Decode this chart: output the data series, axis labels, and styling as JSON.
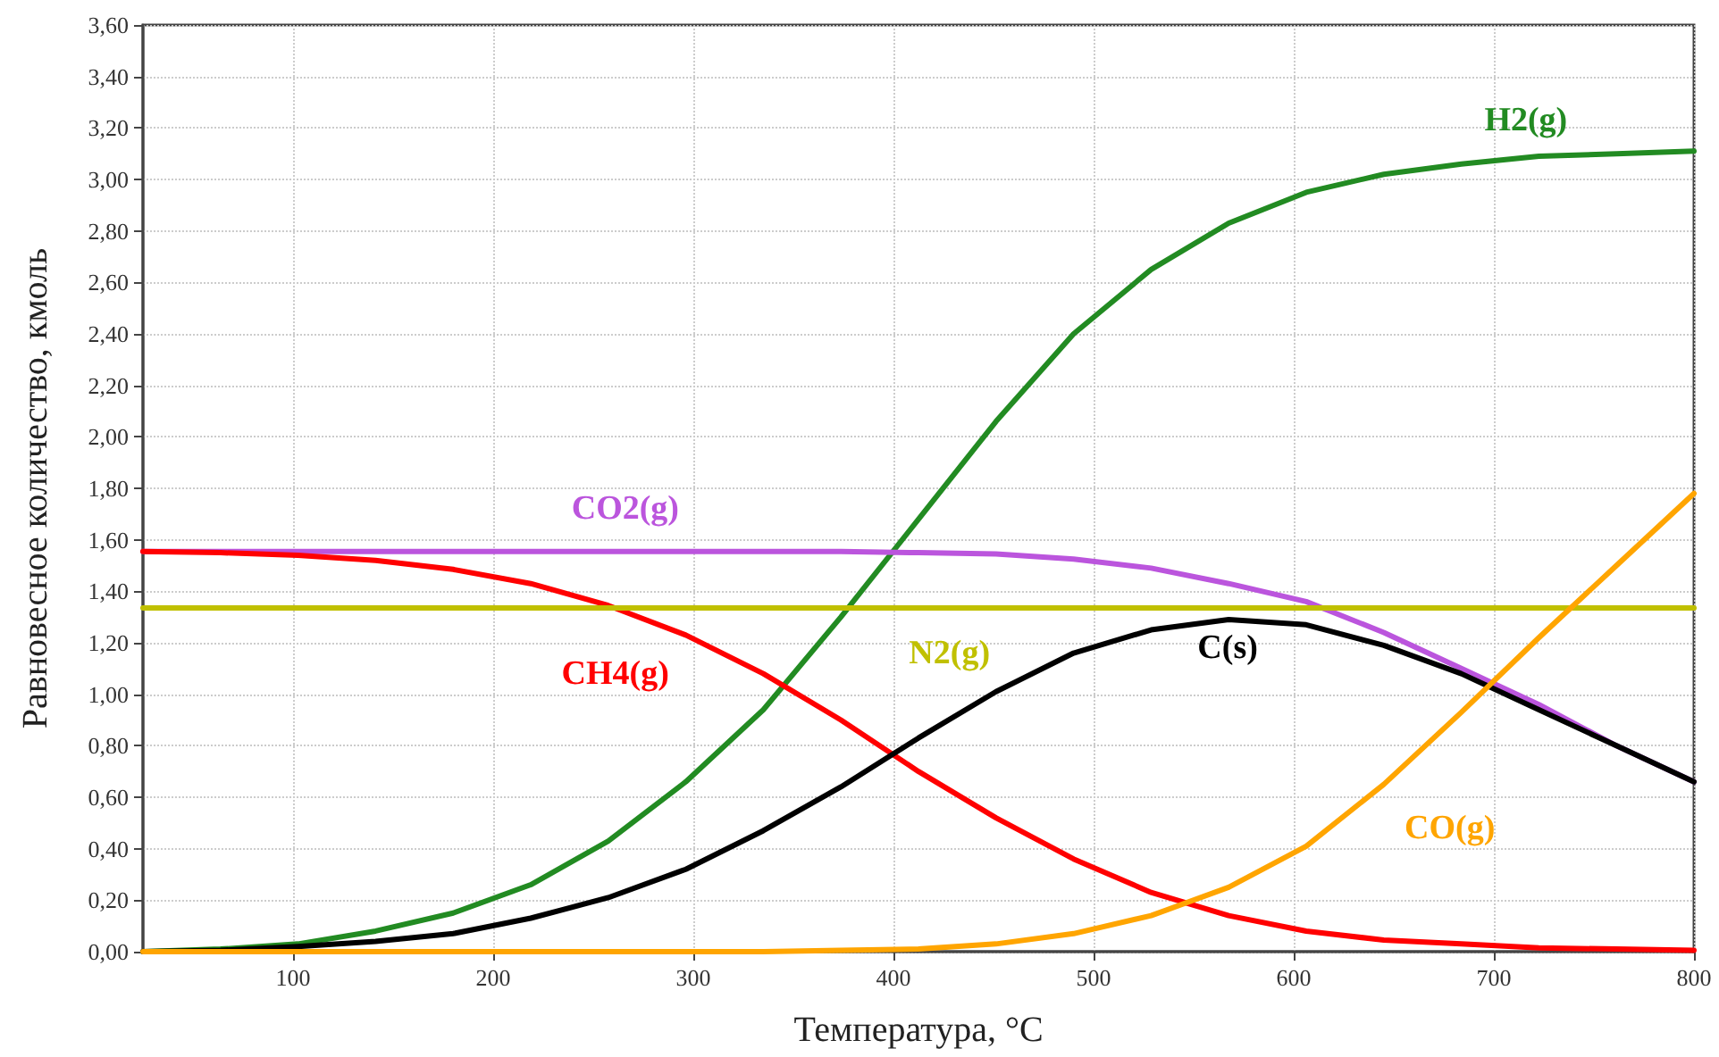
{
  "chart_data": {
    "type": "line",
    "xlabel": "Температура, °C",
    "ylabel": "Равновесное количество, кмоль",
    "x": [
      25,
      63.75,
      102.5,
      141.25,
      180,
      218.75,
      257.5,
      296.25,
      335,
      373.75,
      412.5,
      451.25,
      490,
      528.75,
      567.5,
      606.25,
      645,
      683.75,
      722.5,
      761.25,
      800
    ],
    "series": [
      {
        "name": "H2(g)",
        "color": "#228b22",
        "values": [
          0,
          0.01,
          0.03,
          0.08,
          0.15,
          0.26,
          0.43,
          0.66,
          0.94,
          1.3,
          1.68,
          2.06,
          2.4,
          2.65,
          2.83,
          2.95,
          3.02,
          3.06,
          3.09,
          3.1,
          3.11
        ]
      },
      {
        "name": "CO2(g)",
        "color": "#bb55dd",
        "values": [
          1.555,
          1.555,
          1.555,
          1.555,
          1.555,
          1.555,
          1.555,
          1.555,
          1.555,
          1.555,
          1.55,
          1.545,
          1.525,
          1.49,
          1.43,
          1.36,
          1.24,
          1.1,
          0.96,
          0.8,
          0.66
        ]
      },
      {
        "name": "CH4(g)",
        "color": "#ff0000",
        "values": [
          1.555,
          1.55,
          1.54,
          1.52,
          1.485,
          1.43,
          1.345,
          1.23,
          1.08,
          0.9,
          0.7,
          0.52,
          0.36,
          0.23,
          0.14,
          0.08,
          0.045,
          0.03,
          0.015,
          0.01,
          0.005
        ]
      },
      {
        "name": "N2(g)",
        "color": "#c0c000",
        "values": [
          1.335,
          1.335,
          1.335,
          1.335,
          1.335,
          1.335,
          1.335,
          1.335,
          1.335,
          1.335,
          1.335,
          1.335,
          1.335,
          1.335,
          1.335,
          1.335,
          1.335,
          1.335,
          1.335,
          1.335,
          1.335
        ]
      },
      {
        "name": "C(s)",
        "color": "#000000",
        "values": [
          0,
          0.005,
          0.02,
          0.04,
          0.07,
          0.13,
          0.21,
          0.32,
          0.47,
          0.64,
          0.83,
          1.01,
          1.16,
          1.25,
          1.29,
          1.27,
          1.19,
          1.08,
          0.94,
          0.8,
          0.66
        ]
      },
      {
        "name": "CO(g)",
        "color": "#ffa500",
        "values": [
          0,
          0,
          0,
          0,
          0,
          0,
          0,
          0,
          0,
          0.005,
          0.01,
          0.03,
          0.07,
          0.14,
          0.25,
          0.41,
          0.65,
          0.93,
          1.22,
          1.5,
          1.78
        ]
      }
    ],
    "xlim": [
      25,
      800
    ],
    "xticks": [
      100,
      200,
      300,
      400,
      500,
      600,
      700,
      800
    ],
    "ylim": [
      0,
      3.6
    ],
    "yticks": [
      {
        "value": 0,
        "label": "0,00"
      },
      {
        "value": 0.2,
        "label": "0,20"
      },
      {
        "value": 0.4,
        "label": "0,40"
      },
      {
        "value": 0.6,
        "label": "0,60"
      },
      {
        "value": 0.8,
        "label": "0,80"
      },
      {
        "value": 1,
        "label": "1,00"
      },
      {
        "value": 1.2,
        "label": "1,20"
      },
      {
        "value": 1.4,
        "label": "1,40"
      },
      {
        "value": 1.6,
        "label": "1,60"
      },
      {
        "value": 1.8,
        "label": "1,80"
      },
      {
        "value": 2,
        "label": "2,00"
      },
      {
        "value": 2.2,
        "label": "2,20"
      },
      {
        "value": 2.4,
        "label": "2,40"
      },
      {
        "value": 2.6,
        "label": "2,60"
      },
      {
        "value": 2.8,
        "label": "2,80"
      },
      {
        "value": 3,
        "label": "3,00"
      },
      {
        "value": 3.2,
        "label": "3,20"
      },
      {
        "value": 3.4,
        "label": "3,40"
      },
      {
        "value": 3.6,
        "label": "3,60"
      }
    ],
    "grid": true,
    "legend": false,
    "marker": "none",
    "line_style": "solid"
  }
}
